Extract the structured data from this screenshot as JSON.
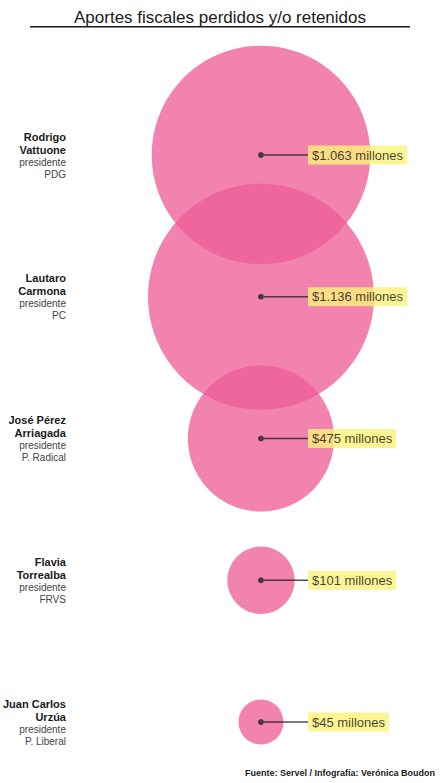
{
  "chart_data": {
    "type": "bubble",
    "title": "Aportes fiscales perdidos y/o retenidos",
    "categories": [
      "Rodrigo Vattuone",
      "Lautaro Carmona",
      "José Pérez Arriagada",
      "Flavia Torrealba",
      "Juan Carlos Urzúa"
    ],
    "roles": [
      "presidente PDG",
      "presidente PC",
      "presidente P. Radical",
      "presidente FRVS",
      "presidente P. Liberal"
    ],
    "values": [
      1063,
      1136,
      475,
      101,
      45
    ],
    "value_labels": [
      "$1.063 millones",
      "$1.136 millones",
      "$475 millones",
      "$101 millones",
      "$45 millones"
    ],
    "color": "#ee5f97",
    "data_labels": true,
    "tick_labels": "y",
    "grid": false,
    "source": "Fuente: Servel / Infografía: Verónica Boudon"
  }
}
